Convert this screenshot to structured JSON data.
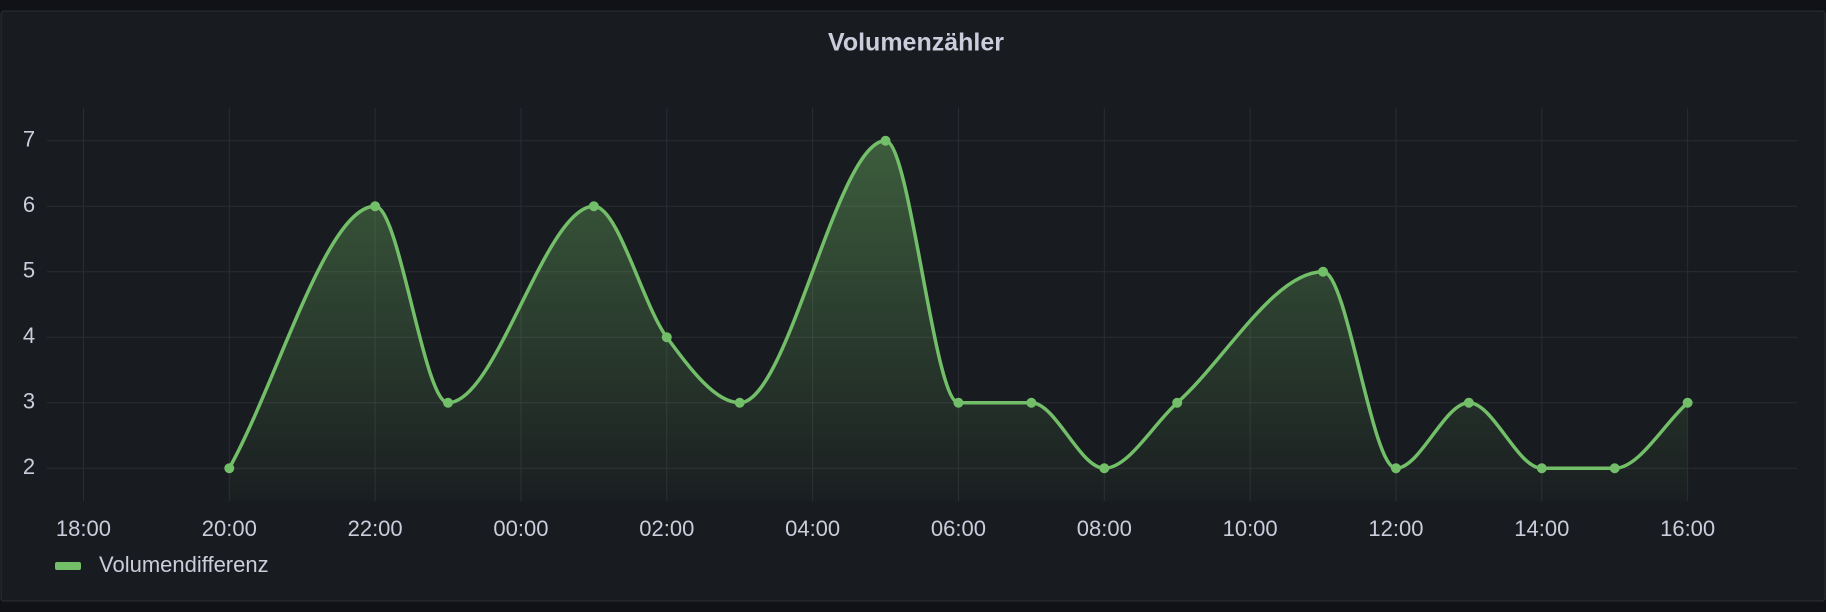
{
  "chart_data": {
    "type": "line",
    "title": "Volumenzähler",
    "x": [
      "20:00",
      "22:00",
      "23:00",
      "01:00",
      "02:00",
      "03:00",
      "05:00",
      "06:00",
      "07:00",
      "08:00",
      "09:00",
      "11:00",
      "12:00",
      "13:00",
      "14:00",
      "15:00",
      "16:00"
    ],
    "series": [
      {
        "name": "Volumendifferenz",
        "color": "#73bf69",
        "values": [
          2,
          6,
          3,
          6,
          4,
          3,
          7,
          3,
          3,
          2,
          3,
          5,
          2,
          3,
          2,
          2,
          3
        ]
      }
    ],
    "xlim": [
      "17:30",
      "17:30"
    ],
    "xticks": [
      "18:00",
      "20:00",
      "22:00",
      "00:00",
      "02:00",
      "04:00",
      "06:00",
      "08:00",
      "10:00",
      "12:00",
      "14:00",
      "16:00"
    ],
    "ylim": [
      1.5,
      7.5
    ],
    "yticks": [
      2,
      3,
      4,
      5,
      6,
      7
    ],
    "grid": true,
    "legend": "bottom-left"
  }
}
